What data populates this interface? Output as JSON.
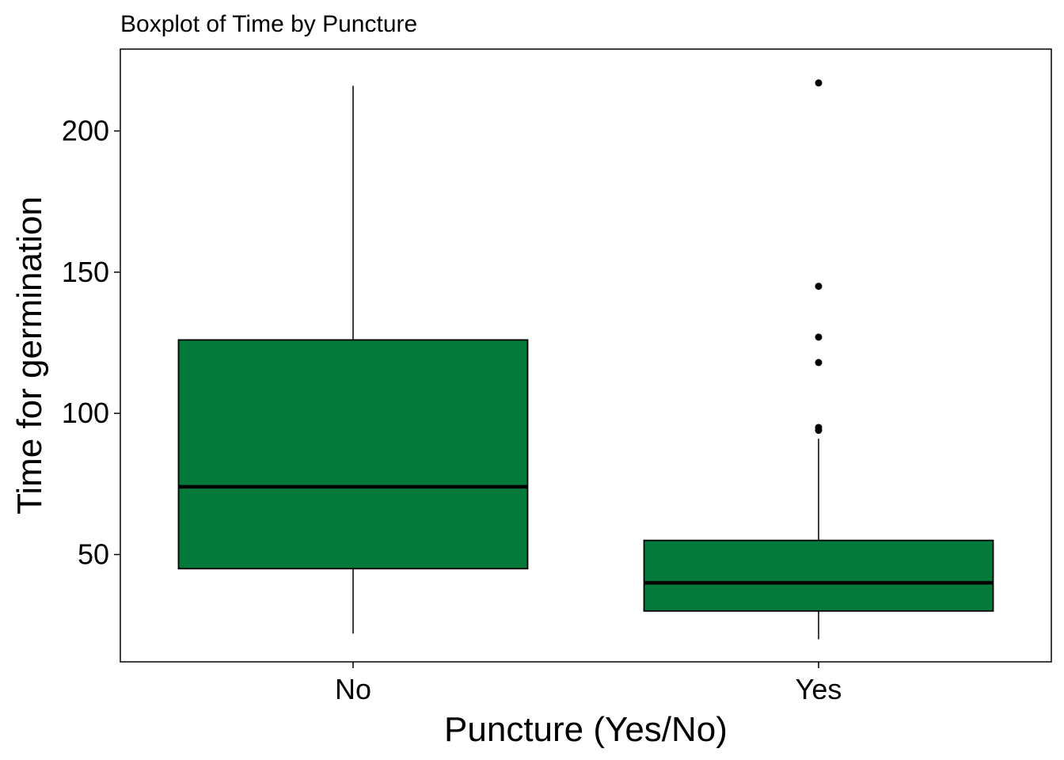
{
  "chart_data": {
    "type": "boxplot",
    "title": "Boxplot of Time by Puncture",
    "xlabel": "Puncture (Yes/No)",
    "ylabel": "Time for germination",
    "ylim": [
      12,
      229
    ],
    "yticks": [
      50,
      100,
      150,
      200
    ],
    "grid": false,
    "legend": "none",
    "box_fill": "#037A3A",
    "outline_color": "#000000",
    "categories": [
      "No",
      "Yes"
    ],
    "boxes": [
      {
        "category": "No",
        "whisker_low": 22,
        "q1": 45,
        "median": 74,
        "q3": 126,
        "whisker_high": 216,
        "outliers": []
      },
      {
        "category": "Yes",
        "whisker_low": 20,
        "q1": 30,
        "median": 40,
        "q3": 55,
        "whisker_high": 91,
        "outliers": [
          94,
          95,
          118,
          127,
          145,
          217
        ]
      }
    ]
  }
}
